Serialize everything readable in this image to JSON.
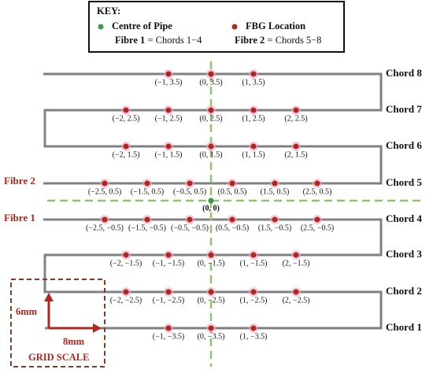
{
  "key": {
    "title": "KEY:",
    "centre": "Centre of Pipe",
    "fbg": "FBG Location",
    "fibre1_name": "Fibre 1",
    "fibre1_desc": " = Chords 1−4",
    "fibre2_name": "Fibre 2",
    "fibre2_desc": " = Chords 5−8"
  },
  "chords": [
    {
      "label": "Chord 8",
      "points": [
        "(−1, 3.5)",
        "(0, 3.5)",
        "(1, 3.5)"
      ]
    },
    {
      "label": "Chord 7",
      "points": [
        "(−2, 2.5)",
        "(−1, 2.5)",
        "(0, 2.5)",
        "(1, 2.5)",
        "(2, 2.5)"
      ]
    },
    {
      "label": "Chord 6",
      "points": [
        "(−2, 1.5)",
        "(−1, 1.5)",
        "(0, 1.5)",
        "(1, 1.5)",
        "(2, 1.5)"
      ]
    },
    {
      "label": "Chord 5",
      "points": [
        "(−2.5, 0.5)",
        "(−1.5, 0.5)",
        "(−0.5, 0.5)",
        "(0.5, 0.5)",
        "(1.5, 0.5)",
        "(2.5, 0.5)"
      ]
    },
    {
      "label": "Chord 4",
      "points": [
        "(−2.5, −0.5)",
        "(−1.5, −0.5)",
        "(−0.5, −0.5)",
        "(0.5, −0.5)",
        "(1.5, −0.5)",
        "(2.5, −0.5)"
      ]
    },
    {
      "label": "Chord 3",
      "points": [
        "(−2, −1.5)",
        "(−1, −1.5)",
        "(0, −1.5)",
        "(1, −1.5)",
        "(2, −1.5)"
      ]
    },
    {
      "label": "Chord 2",
      "points": [
        "(−2, −2.5)",
        "(−1, −2.5)",
        "(0, −2.5)",
        "(1, −2.5)",
        "(2, −2.5)"
      ]
    },
    {
      "label": "Chord 1",
      "points": [
        "(−1, −3.5)",
        "(0, −3.5)",
        "(1, −3.5)"
      ]
    }
  ],
  "fibre_labels": {
    "fibre2": "Fibre 2",
    "fibre1": "Fibre 1"
  },
  "centre_label": "(0, 0)",
  "scale": {
    "vertical": "6mm",
    "horizontal": "8mm",
    "title": "GRID SCALE"
  }
}
